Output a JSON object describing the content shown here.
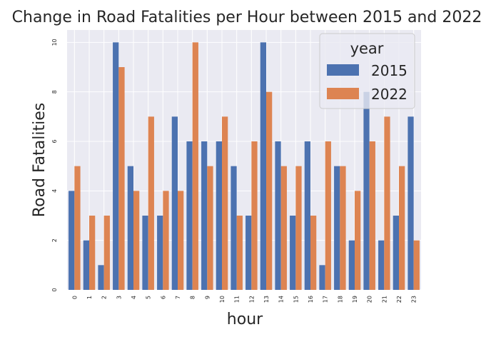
{
  "chart_data": {
    "type": "bar",
    "title": "Change in Road Fatalities per Hour between 2015 and 2022",
    "xlabel": "hour",
    "ylabel": "Road Fatalities",
    "categories": [
      "0",
      "1",
      "2",
      "3",
      "4",
      "5",
      "6",
      "7",
      "8",
      "9",
      "10",
      "11",
      "12",
      "13",
      "14",
      "15",
      "16",
      "17",
      "18",
      "19",
      "20",
      "21",
      "22",
      "23"
    ],
    "series": [
      {
        "name": "2015",
        "color": "#4c72b0",
        "values": [
          4,
          2,
          1,
          10,
          5,
          3,
          3,
          7,
          6,
          6,
          6,
          5,
          3,
          10,
          6,
          3,
          6,
          1,
          5,
          2,
          8,
          2,
          3,
          7
        ]
      },
      {
        "name": "2022",
        "color": "#dd8452",
        "values": [
          5,
          3,
          3,
          9,
          4,
          7,
          4,
          4,
          10,
          5,
          7,
          3,
          6,
          8,
          5,
          5,
          3,
          6,
          5,
          4,
          6,
          7,
          5,
          2
        ]
      }
    ],
    "yticks": [
      "0",
      "2",
      "4",
      "6",
      "8",
      "10"
    ],
    "ylim": [
      0,
      10.5
    ],
    "grid": true,
    "legend": {
      "title": "year",
      "placement": "top-right"
    },
    "plot_background": "#eaeaf2"
  }
}
